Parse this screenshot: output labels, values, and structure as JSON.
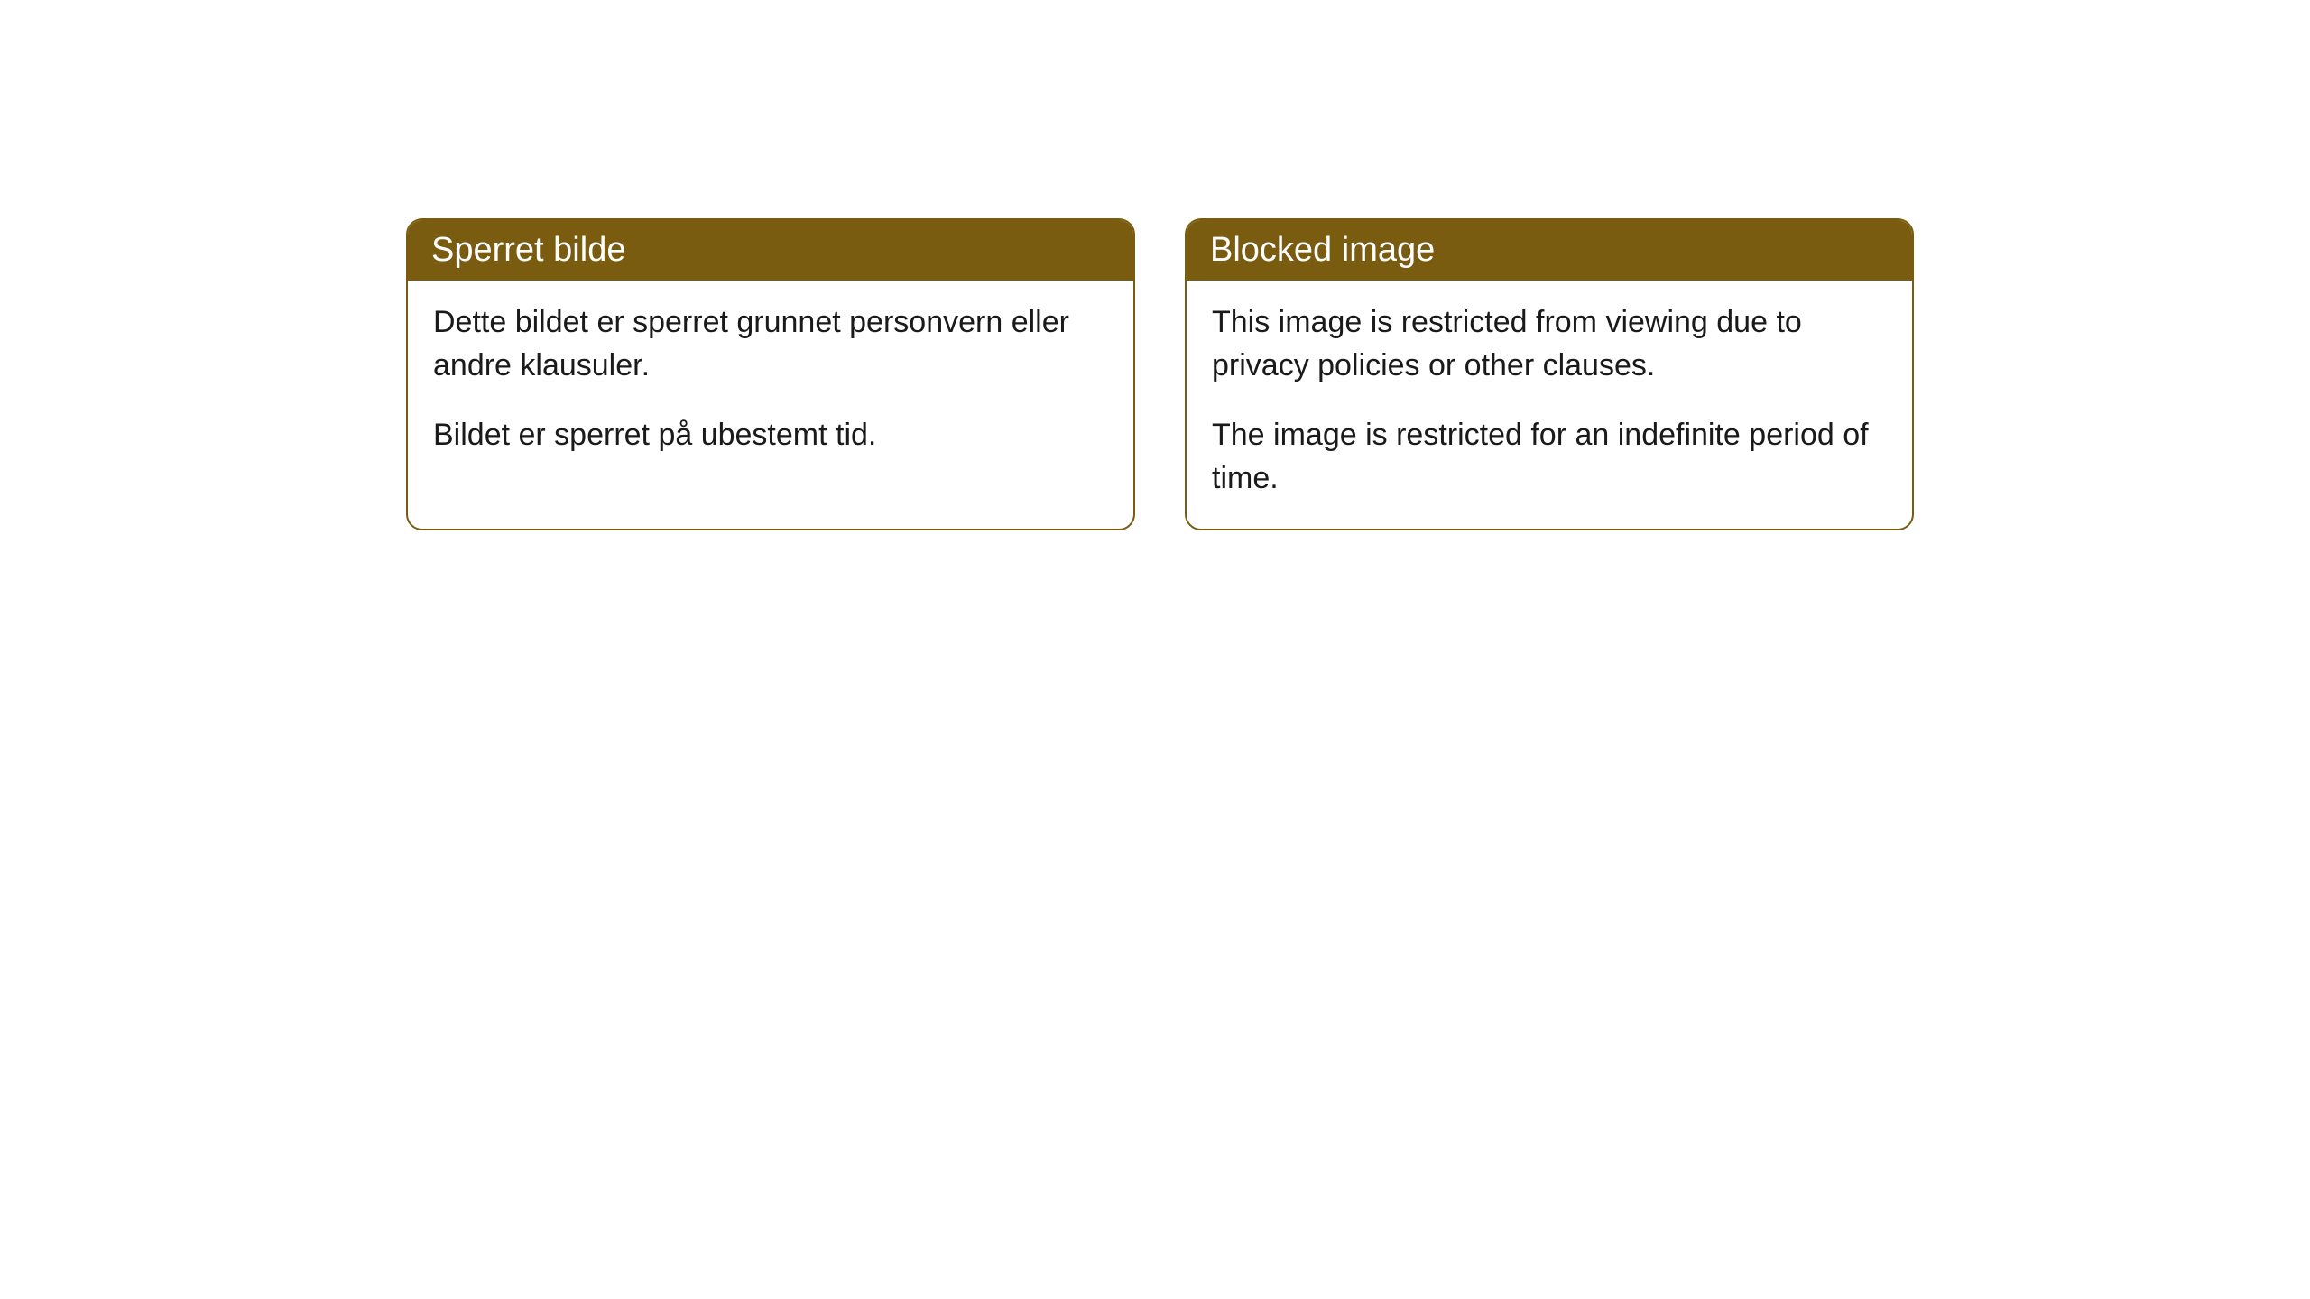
{
  "cards": [
    {
      "title": "Sperret bilde",
      "paragraph1": "Dette bildet er sperret grunnet personvern eller andre klausuler.",
      "paragraph2": "Bildet er sperret på ubestemt tid."
    },
    {
      "title": "Blocked image",
      "paragraph1": "This image is restricted from viewing due to privacy policies or other clauses.",
      "paragraph2": "The image is restricted for an indefinite period of time."
    }
  ],
  "colors": {
    "header_bg": "#7a5c10",
    "header_text": "#ffffff",
    "border": "#7a5c10",
    "body_text": "#1a1a1a",
    "body_bg": "#ffffff"
  }
}
